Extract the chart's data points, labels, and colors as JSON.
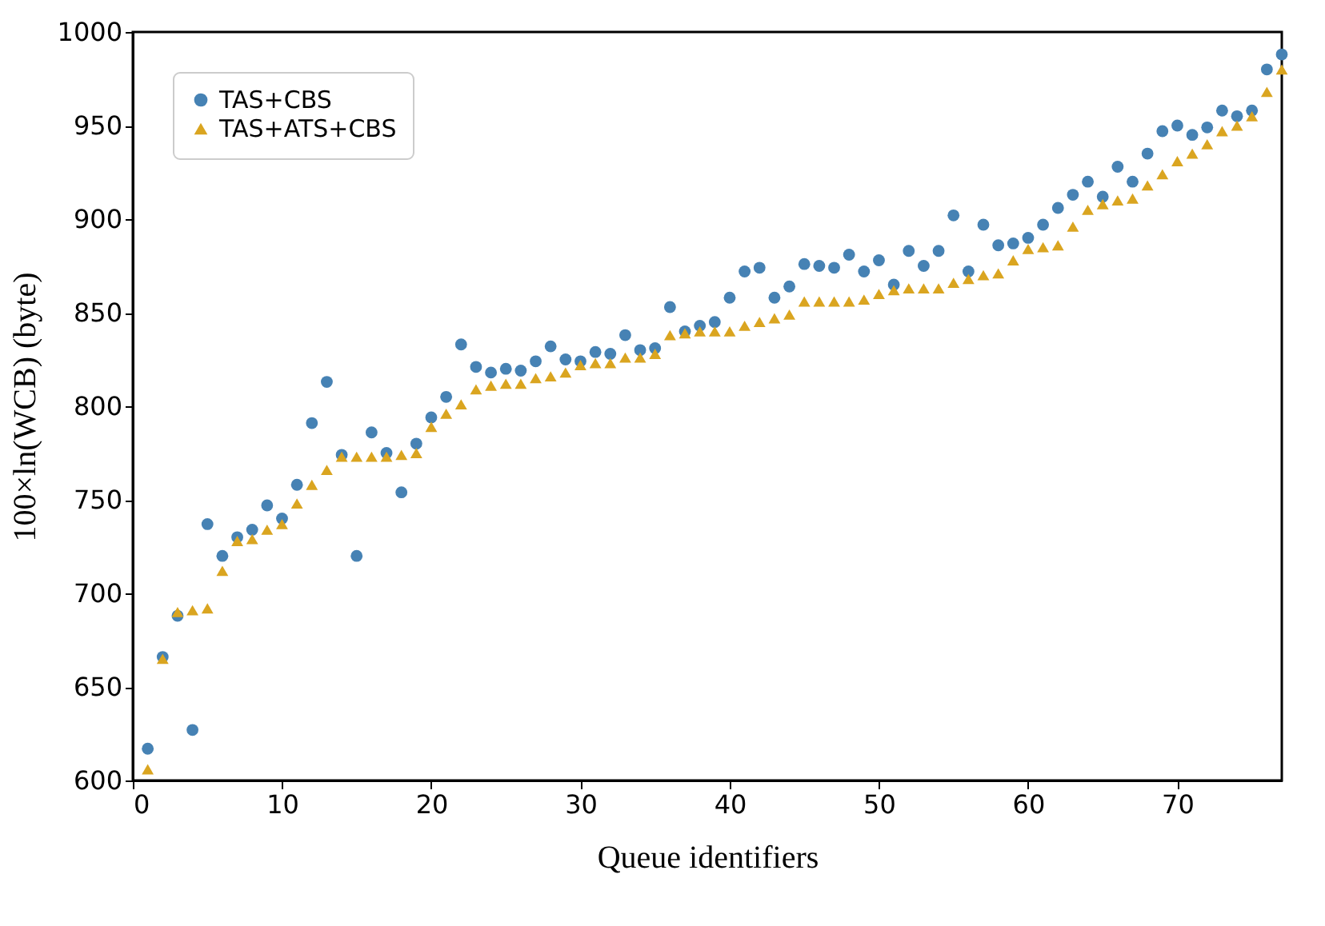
{
  "chart_data": {
    "type": "scatter",
    "xlabel": "Queue identifiers",
    "ylabel": "100×ln(WCB)  (byte)",
    "x": [
      1,
      2,
      3,
      4,
      5,
      6,
      7,
      8,
      9,
      10,
      11,
      12,
      13,
      14,
      15,
      16,
      17,
      18,
      19,
      20,
      21,
      22,
      23,
      24,
      25,
      26,
      27,
      28,
      29,
      30,
      31,
      32,
      33,
      34,
      35,
      36,
      37,
      38,
      39,
      40,
      41,
      42,
      43,
      44,
      45,
      46,
      47,
      48,
      49,
      50,
      51,
      52,
      53,
      54,
      55,
      56,
      57,
      58,
      59,
      60,
      61,
      62,
      63,
      64,
      65,
      66,
      67,
      68,
      69,
      70,
      71,
      72,
      73,
      74,
      75,
      76,
      77
    ],
    "series": [
      {
        "name": "TAS+CBS",
        "color": "#4682b4",
        "marker": "circle",
        "values": [
          617,
          666,
          688,
          627,
          737,
          720,
          730,
          734,
          747,
          740,
          758,
          791,
          813,
          774,
          720,
          786,
          775,
          754,
          780,
          794,
          805,
          833,
          821,
          818,
          820,
          819,
          824,
          832,
          825,
          824,
          829,
          828,
          838,
          830,
          831,
          853,
          840,
          843,
          845,
          858,
          872,
          874,
          858,
          864,
          876,
          875,
          874,
          881,
          872,
          878,
          865,
          883,
          875,
          883,
          902,
          872,
          897,
          886,
          887,
          890,
          897,
          906,
          913,
          920,
          912,
          928,
          920,
          935,
          947,
          950,
          945,
          949,
          958,
          955,
          958,
          980,
          988
        ]
      },
      {
        "name": "TAS+ATS+CBS",
        "color": "#daa520",
        "marker": "triangle",
        "values": [
          606,
          665,
          690,
          691,
          692,
          712,
          728,
          729,
          734,
          737,
          748,
          758,
          766,
          773,
          773,
          773,
          773,
          774,
          775,
          789,
          796,
          801,
          809,
          811,
          812,
          812,
          815,
          816,
          818,
          822,
          823,
          823,
          826,
          826,
          828,
          838,
          839,
          840,
          840,
          840,
          843,
          845,
          847,
          849,
          856,
          856,
          856,
          856,
          857,
          860,
          862,
          863,
          863,
          863,
          866,
          868,
          870,
          871,
          878,
          884,
          885,
          886,
          896,
          905,
          908,
          910,
          911,
          918,
          924,
          931,
          935,
          940,
          947,
          950,
          955,
          968,
          980
        ]
      }
    ],
    "xlim": [
      0,
      77
    ],
    "ylim": [
      600,
      1000
    ],
    "xticks": [
      0,
      10,
      20,
      30,
      40,
      50,
      60,
      70
    ],
    "yticks": [
      600,
      650,
      700,
      750,
      800,
      850,
      900,
      950,
      1000
    ],
    "legend": "top left",
    "grid": false
  }
}
